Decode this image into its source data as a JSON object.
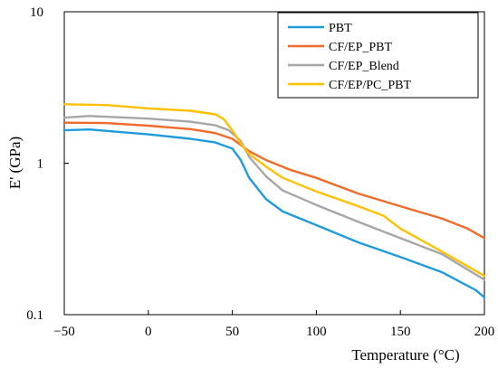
{
  "chart_data": {
    "type": "line",
    "title": "",
    "xlabel": "Temperature (°C)",
    "ylabel": "E' (GPa)",
    "xlim": [
      -50,
      200
    ],
    "ylim": [
      0.1,
      10
    ],
    "yscale": "log",
    "x_ticks": [
      -50,
      0,
      50,
      100,
      150,
      200
    ],
    "x_tick_labels": [
      "−50",
      "0",
      "50",
      "100",
      "150",
      "200"
    ],
    "y_ticks": [
      0.1,
      1,
      10
    ],
    "y_tick_labels": [
      "0.1",
      "1",
      "10"
    ],
    "grid": false,
    "legend_position": "top-right",
    "series": [
      {
        "name": "PBT",
        "color": "#1f9bdb",
        "x": [
          -50,
          -35,
          0,
          25,
          40,
          50,
          55,
          60,
          70,
          80,
          100,
          125,
          150,
          175,
          195,
          200
        ],
        "y": [
          1.65,
          1.67,
          1.55,
          1.45,
          1.37,
          1.25,
          1.05,
          0.8,
          0.58,
          0.48,
          0.39,
          0.3,
          0.24,
          0.19,
          0.145,
          0.13
        ]
      },
      {
        "name": "CF/EP_PBT",
        "color": "#f06b2a",
        "x": [
          -50,
          -25,
          0,
          25,
          40,
          50,
          60,
          70,
          85,
          100,
          125,
          150,
          175,
          190,
          200
        ],
        "y": [
          1.85,
          1.84,
          1.77,
          1.68,
          1.58,
          1.45,
          1.2,
          1.05,
          0.9,
          0.8,
          0.63,
          0.52,
          0.43,
          0.37,
          0.32
        ]
      },
      {
        "name": "CF/EP_Blend",
        "color": "#a6a6a6",
        "x": [
          -50,
          -35,
          0,
          25,
          40,
          48,
          55,
          60,
          70,
          80,
          100,
          125,
          150,
          175,
          200
        ],
        "y": [
          2.0,
          2.05,
          1.97,
          1.88,
          1.78,
          1.65,
          1.4,
          1.1,
          0.82,
          0.66,
          0.53,
          0.41,
          0.32,
          0.25,
          0.17
        ]
      },
      {
        "name": "CF/EP/PC_PBT",
        "color": "#ffc000",
        "x": [
          -50,
          -25,
          0,
          25,
          40,
          45,
          50,
          55,
          60,
          70,
          80,
          100,
          125,
          140,
          150,
          175,
          200
        ],
        "y": [
          2.45,
          2.42,
          2.3,
          2.22,
          2.1,
          1.95,
          1.65,
          1.35,
          1.15,
          0.95,
          0.8,
          0.65,
          0.52,
          0.45,
          0.37,
          0.26,
          0.18
        ]
      }
    ]
  }
}
